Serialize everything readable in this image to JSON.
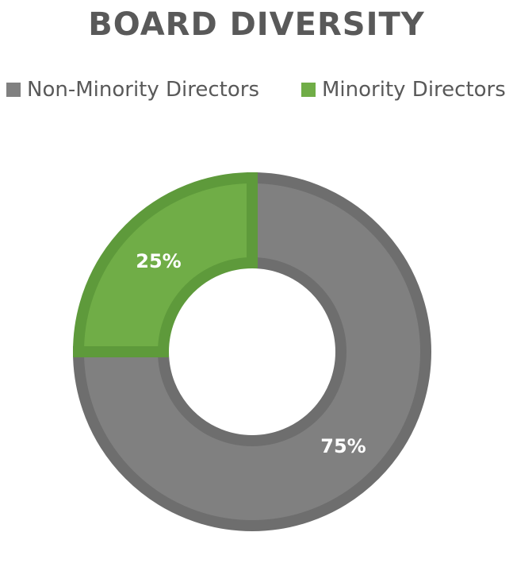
{
  "chart_data": {
    "type": "pie",
    "subtype": "doughnut",
    "title": "BOARD DIVERSITY",
    "legend_position": "top",
    "series": [
      {
        "categories": [
          "Non-Minority Directors",
          "Minority Directors"
        ],
        "values": [
          75,
          25
        ],
        "data_labels": [
          "75%",
          "25%"
        ]
      }
    ],
    "colors": {
      "Non-Minority Directors": "#808080",
      "Minority Directors": "#70AD47"
    },
    "border_colors": {
      "Non-Minority Directors": "#6E6E6E",
      "Minority Directors": "#5E9A3B"
    }
  }
}
